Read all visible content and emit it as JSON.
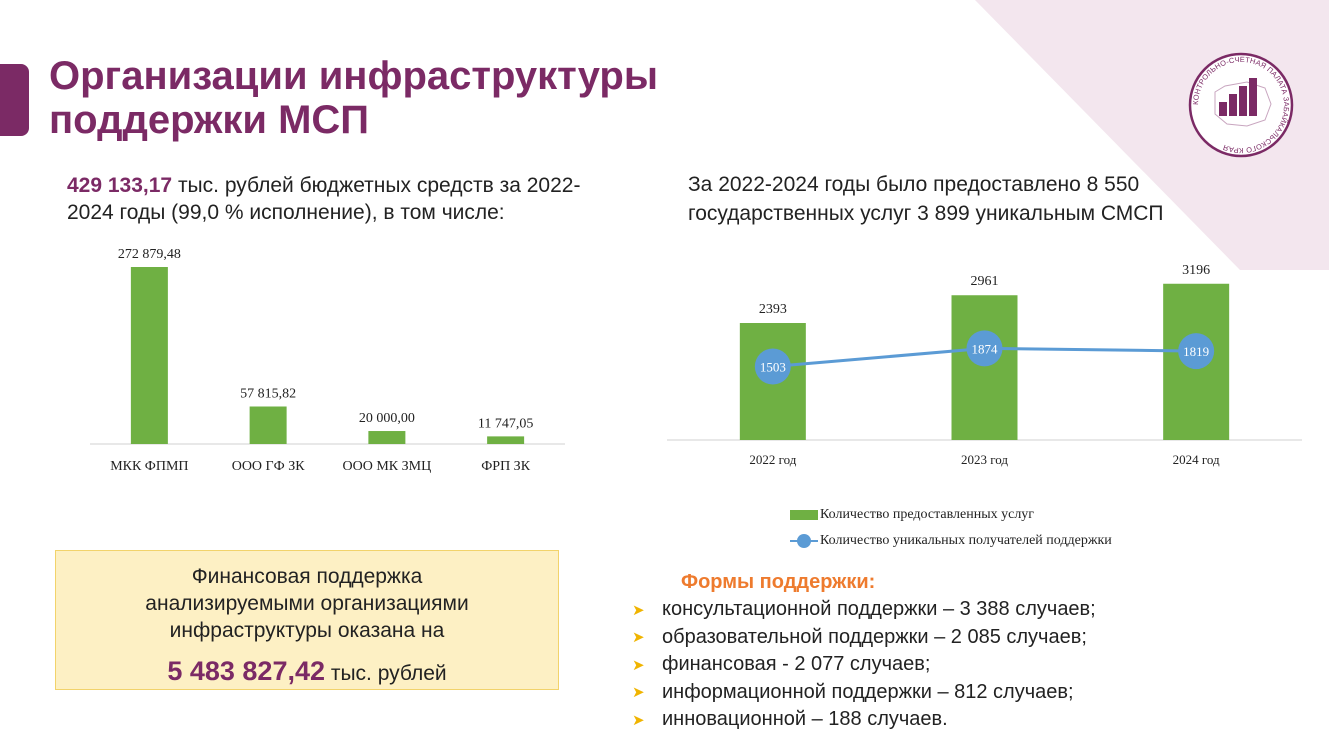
{
  "page": {
    "title_lines": [
      "Организации инфраструктуры",
      "поддержки МСП"
    ]
  },
  "logo": {
    "text": "КОНТРОЛЬНО-СЧЕТНАЯ ПАЛАТА ЗАБАЙКАЛЬСКОГО КРАЯ"
  },
  "budget": {
    "amount": "429 133,17",
    "text_rest": " тыс. рублей бюджетных средств за 2022-2024 годы (99,0 % исполнение), в том числе:"
  },
  "services": {
    "text": "За 2022-2024 годы было предоставлено 8 550 государственных услуг 3 899 уникальным СМСП"
  },
  "chart_data": [
    {
      "type": "bar",
      "categories": [
        "МКК ФПМП",
        "ООО ГФ ЗК",
        "ООО МК ЗМЦ",
        "ФРП ЗК"
      ],
      "values": [
        272879.48,
        57815.82,
        20000.0,
        11747.05
      ],
      "data_labels": [
        "272 879,48",
        "57 815,82",
        "20 000,00",
        "11 747,05"
      ],
      "ylim": [
        0,
        272879.48
      ],
      "grid": false,
      "color": "#6fb043"
    },
    {
      "type": "bar",
      "categories": [
        "2022 год",
        "2023 год",
        "2024 год"
      ],
      "series": [
        {
          "name": "Количество предоставленных услуг",
          "type": "bar",
          "values": [
            2393,
            2961,
            3196
          ],
          "color": "#6fb043"
        },
        {
          "name": "Количество уникальных получателей поддержки",
          "type": "line",
          "values": [
            1503,
            1874,
            1819
          ],
          "color": "#5b9bd5"
        }
      ],
      "ylim": [
        0,
        3600
      ],
      "grid": false,
      "legend_position": "bottom"
    }
  ],
  "financial_box": {
    "lines": [
      "Финансовая поддержка",
      "анализируемыми организациями",
      "инфраструктуры оказана на"
    ],
    "amount": "5 483 827,42",
    "unit": " тыс. рублей"
  },
  "support_forms": {
    "title": "Формы поддержки:",
    "items": [
      "консультационной поддержки – 3 388 случаев;",
      "образовательной поддержки – 2 085 случаев;",
      "финансовая - 2 077 случаев;",
      "информационной поддержки – 812 случаев;",
      "инновационной – 188 случаев."
    ]
  }
}
